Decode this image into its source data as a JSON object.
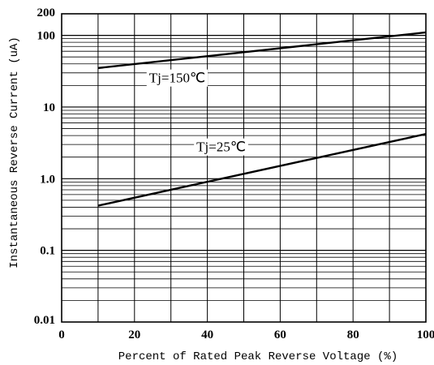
{
  "chart_data": {
    "type": "line",
    "xlabel": "Percent of Rated Peak Reverse Voltage (%)",
    "ylabel": "Instantaneous Reverse Current (uA)",
    "x_scale": "linear",
    "y_scale": "log",
    "xlim": [
      0,
      100
    ],
    "ylim": [
      0.01,
      200
    ],
    "x_ticks": [
      "0",
      "20",
      "40",
      "60",
      "80",
      "100"
    ],
    "y_ticks": [
      {
        "value": 0.01,
        "label": "0.01"
      },
      {
        "value": 0.1,
        "label": "0.1"
      },
      {
        "value": 1,
        "label": "1.0"
      },
      {
        "value": 10,
        "label": "10"
      },
      {
        "value": 100,
        "label": "100"
      },
      {
        "value": 200,
        "label": "200"
      }
    ],
    "grid": true,
    "series": [
      {
        "name": "Tj=150℃",
        "x": [
          10,
          100
        ],
        "y": [
          35,
          110
        ]
      },
      {
        "name": "Tj=25℃",
        "x": [
          10,
          100
        ],
        "y": [
          0.42,
          4.2
        ]
      }
    ],
    "annotations": [
      {
        "text": "Tj=150℃",
        "x": 24,
        "y": 22
      },
      {
        "text": "Tj=25℃",
        "x": 37,
        "y": 2.4
      }
    ]
  }
}
